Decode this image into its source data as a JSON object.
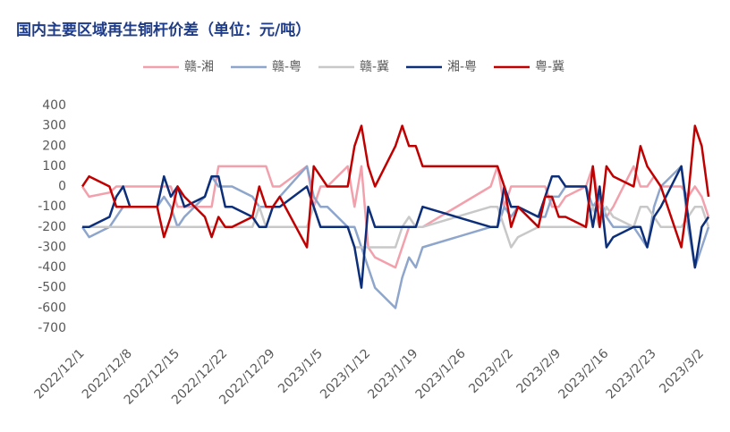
{
  "chart_data": {
    "type": "line",
    "title": "国内主要区域再生铜杆价差（单位：元/吨）",
    "x": [
      "2022/12/1",
      "2022/12/2",
      "2022/12/5",
      "2022/12/6",
      "2022/12/7",
      "2022/12/8",
      "2022/12/9",
      "2022/12/12",
      "2022/12/13",
      "2022/12/14",
      "2022/12/15",
      "2022/12/16",
      "2022/12/19",
      "2022/12/20",
      "2022/12/21",
      "2022/12/22",
      "2022/12/23",
      "2022/12/26",
      "2022/12/27",
      "2022/12/28",
      "2022/12/29",
      "2022/12/30",
      "2023/1/3",
      "2023/1/4",
      "2023/1/5",
      "2023/1/6",
      "2023/1/9",
      "2023/1/10",
      "2023/1/11",
      "2023/1/12",
      "2023/1/13",
      "2023/1/16",
      "2023/1/17",
      "2023/1/18",
      "2023/1/19",
      "2023/1/20",
      "2023/1/30",
      "2023/1/31",
      "2023/2/1",
      "2023/2/2",
      "2023/2/3",
      "2023/2/6",
      "2023/2/7",
      "2023/2/8",
      "2023/2/9",
      "2023/2/10",
      "2023/2/13",
      "2023/2/14",
      "2023/2/15",
      "2023/2/16",
      "2023/2/17",
      "2023/2/20",
      "2023/2/21",
      "2023/2/22",
      "2023/2/23",
      "2023/2/24",
      "2023/2/27",
      "2023/2/28",
      "2023/3/1",
      "2023/3/2",
      "2023/3/3"
    ],
    "xlim": [
      "2022/12/1",
      "2023/3/3"
    ],
    "xticks": [
      "2022/12/1",
      "2022/12/8",
      "2022/12/15",
      "2022/12/22",
      "2022/12/29",
      "2023/1/5",
      "2023/1/12",
      "2023/1/19",
      "2023/1/26",
      "2023/2/2",
      "2023/2/9",
      "2023/2/16",
      "2023/2/23",
      "2023/3/2"
    ],
    "ylim": [
      -700,
      400
    ],
    "yticks": [
      400,
      300,
      200,
      100,
      0,
      -100,
      -200,
      -300,
      -400,
      -500,
      -600,
      -700
    ],
    "grid": false,
    "legend": "top",
    "series": [
      {
        "name": "赣-湘",
        "color": "#f2a0ac",
        "values": [
          0,
          -50,
          -30,
          0,
          0,
          0,
          0,
          0,
          0,
          0,
          -100,
          -100,
          -100,
          -100,
          100,
          100,
          100,
          100,
          100,
          100,
          0,
          0,
          100,
          -100,
          0,
          0,
          100,
          -100,
          100,
          -300,
          -350,
          -400,
          -300,
          -200,
          -200,
          -200,
          0,
          100,
          -100,
          0,
          0,
          0,
          0,
          -100,
          -100,
          -50,
          0,
          100,
          -100,
          -150,
          -100,
          100,
          0,
          0,
          50,
          0,
          0,
          -50,
          0,
          -50,
          -150
        ]
      },
      {
        "name": "赣-粤",
        "color": "#8ea5cc",
        "values": [
          -200,
          -250,
          -200,
          -150,
          -100,
          -100,
          -100,
          -100,
          -50,
          -100,
          -200,
          -150,
          -50,
          50,
          0,
          0,
          0,
          -50,
          -100,
          -100,
          -100,
          -50,
          100,
          -50,
          -100,
          -100,
          -200,
          -200,
          -300,
          -400,
          -500,
          -600,
          -450,
          -350,
          -400,
          -300,
          -200,
          -200,
          -100,
          -150,
          -100,
          -150,
          -150,
          -50,
          -50,
          0,
          0,
          -100,
          -50,
          -150,
          -200,
          -200,
          -250,
          -300,
          -100,
          0,
          100,
          -200,
          -400,
          -300,
          -200
        ]
      },
      {
        "name": "赣-冀",
        "color": "#c8c8c8",
        "values": [
          -200,
          -200,
          -200,
          -200,
          -200,
          -200,
          -200,
          -200,
          -200,
          -200,
          -200,
          -200,
          -200,
          -200,
          -200,
          -200,
          -200,
          -200,
          -100,
          -200,
          -200,
          -200,
          -200,
          -100,
          -200,
          -200,
          -200,
          -300,
          -300,
          -300,
          -300,
          -300,
          -200,
          -150,
          -200,
          -200,
          -100,
          -100,
          -200,
          -300,
          -250,
          -200,
          -200,
          -200,
          -200,
          -200,
          -200,
          -100,
          -200,
          -100,
          -150,
          -200,
          -100,
          -100,
          -150,
          -200,
          -200,
          -150,
          -100,
          -100,
          -200
        ]
      },
      {
        "name": "湘-粤",
        "color": "#0d2f7a",
        "values": [
          -200,
          -200,
          -150,
          -50,
          0,
          -100,
          -100,
          -100,
          50,
          -50,
          0,
          -100,
          -50,
          50,
          50,
          -100,
          -100,
          -150,
          -200,
          -200,
          -100,
          -100,
          0,
          -100,
          -200,
          -200,
          -200,
          -300,
          -500,
          -100,
          -200,
          -200,
          -200,
          -200,
          -200,
          -100,
          -200,
          -200,
          0,
          -100,
          -100,
          -150,
          -50,
          50,
          50,
          0,
          0,
          -200,
          0,
          -300,
          -250,
          -200,
          -200,
          -300,
          -150,
          -100,
          100,
          -150,
          -400,
          -200,
          -150
        ]
      },
      {
        "name": "粤-冀",
        "color": "#c00000",
        "values": [
          0,
          50,
          0,
          -100,
          -100,
          -100,
          -100,
          -100,
          -250,
          -150,
          0,
          -50,
          -150,
          -250,
          -150,
          -200,
          -200,
          -150,
          0,
          -100,
          -100,
          -50,
          -300,
          100,
          50,
          0,
          0,
          200,
          300,
          100,
          0,
          200,
          300,
          200,
          200,
          100,
          100,
          100,
          0,
          -200,
          -100,
          -200,
          -50,
          -50,
          -150,
          -150,
          -200,
          100,
          -200,
          100,
          50,
          0,
          200,
          100,
          50,
          0,
          -300,
          -50,
          300,
          200,
          -50
        ]
      }
    ]
  }
}
